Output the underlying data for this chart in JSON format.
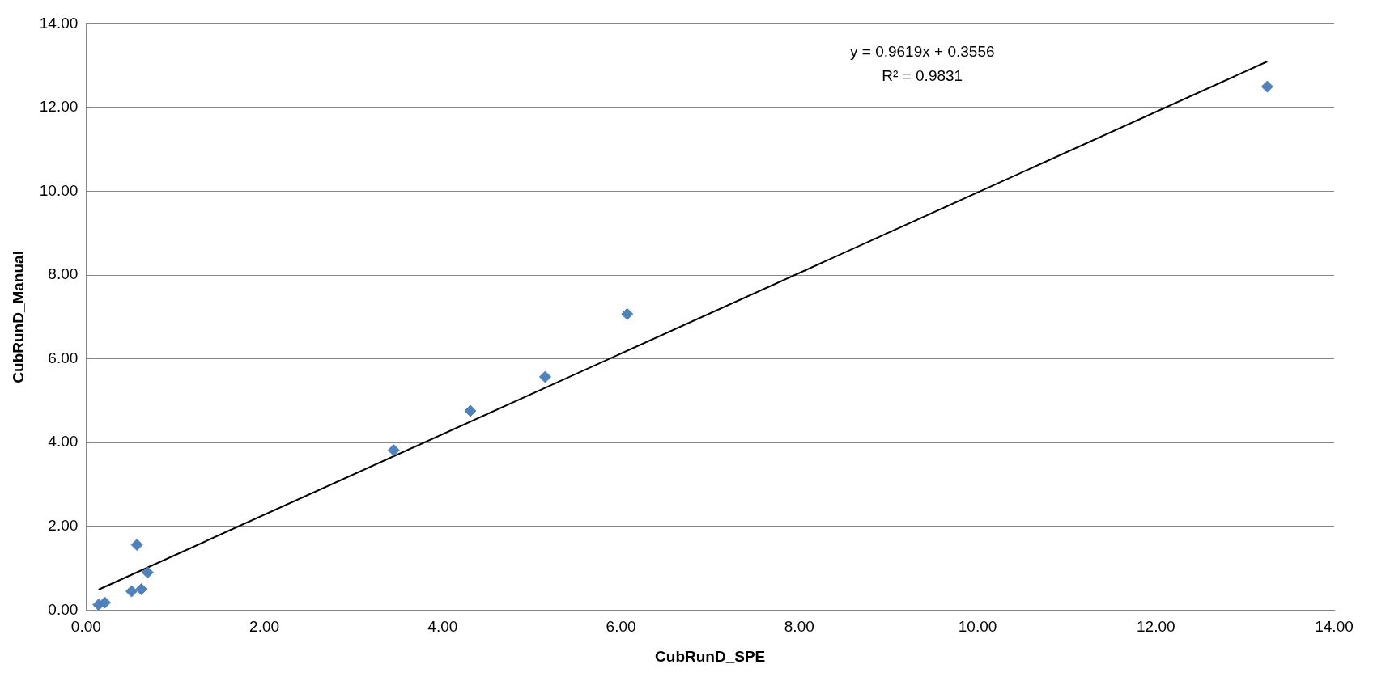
{
  "chart_data": {
    "type": "scatter",
    "xlabel": "CubRunD_SPE",
    "ylabel": "CubRunD_Manual",
    "xlim": [
      0,
      14
    ],
    "xticks": [
      {
        "value": 0,
        "label": "0.00"
      },
      {
        "value": 2,
        "label": "2.00"
      },
      {
        "value": 4,
        "label": "4.00"
      },
      {
        "value": 6,
        "label": "6.00"
      },
      {
        "value": 8,
        "label": "8.00"
      },
      {
        "value": 10,
        "label": "10.00"
      },
      {
        "value": 12,
        "label": "12.00"
      },
      {
        "value": 14,
        "label": "14.00"
      }
    ],
    "ylim": [
      0,
      14
    ],
    "yticks": [
      {
        "value": 0,
        "label": "0.00"
      },
      {
        "value": 2,
        "label": "2.00"
      },
      {
        "value": 4,
        "label": "4.00"
      },
      {
        "value": 6,
        "label": "6.00"
      },
      {
        "value": 8,
        "label": "8.00"
      },
      {
        "value": 10,
        "label": "10.00"
      },
      {
        "value": 12,
        "label": "12.00"
      },
      {
        "value": 14,
        "label": "14.00"
      }
    ],
    "grid": "y",
    "marker": "diamond",
    "legend": false,
    "series": [
      {
        "type": "scatter",
        "color": "#4f81bd",
        "x": [
          0.14,
          0.21,
          0.51,
          0.62,
          0.57,
          0.69,
          3.45,
          4.31,
          5.15,
          6.07,
          13.25
        ],
        "values": [
          0.13,
          0.18,
          0.45,
          0.5,
          1.56,
          0.9,
          3.82,
          4.76,
          5.57,
          7.07,
          12.5
        ]
      },
      {
        "type": "line",
        "color": "#000000",
        "marker": "none",
        "x": [
          0.14,
          13.25
        ],
        "values": [
          0.49,
          13.1
        ]
      }
    ],
    "annotations": [
      "y = 0.9619x + 0.3556",
      "R² = 0.9831"
    ]
  }
}
